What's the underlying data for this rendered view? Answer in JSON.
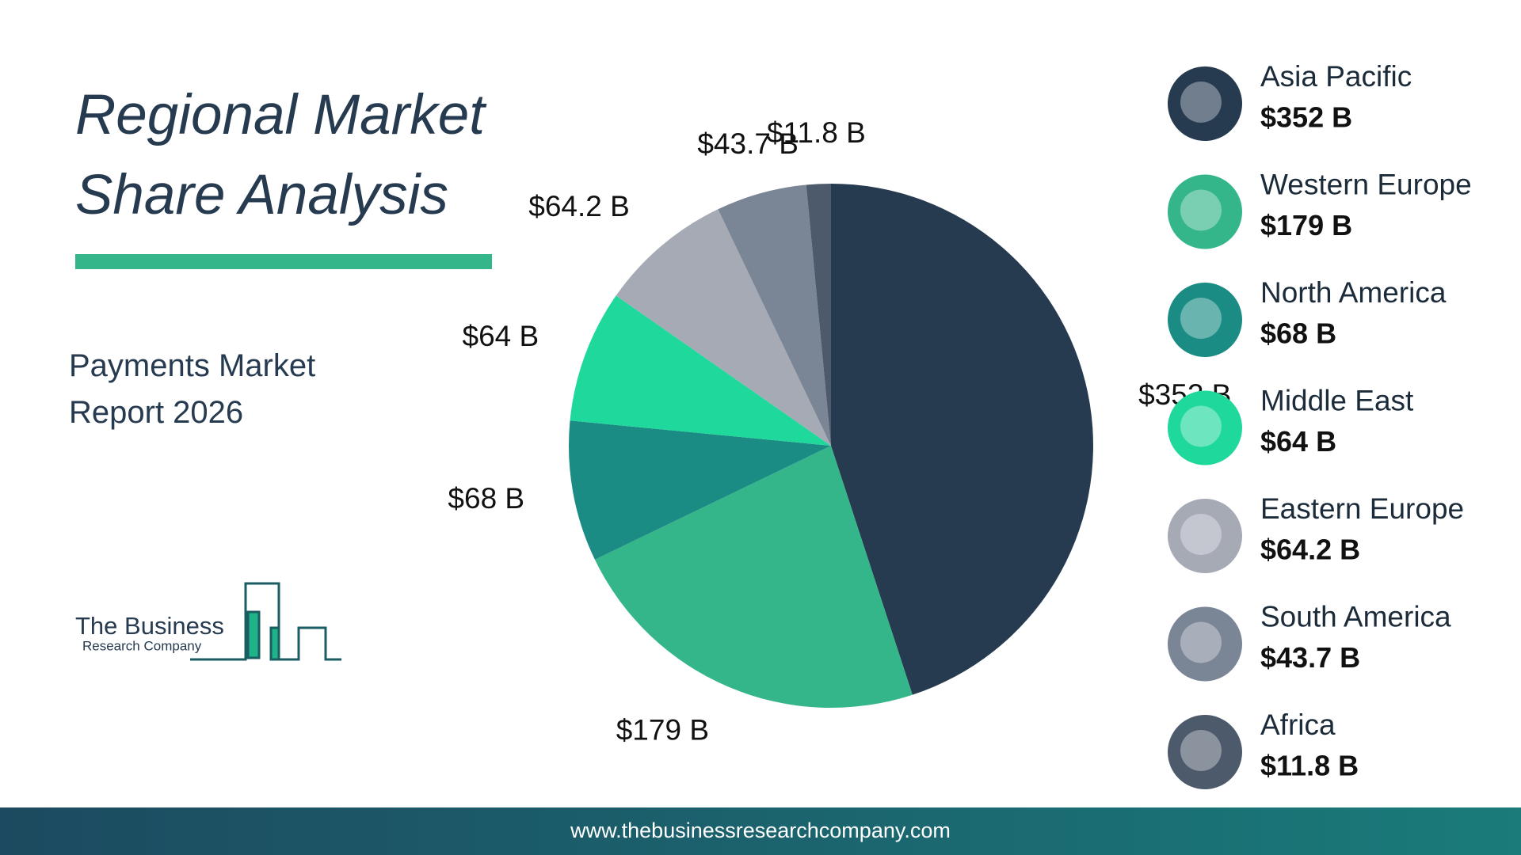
{
  "chart_data": {
    "type": "pie",
    "title": "Regional Market Share Analysis",
    "subtitle": "Payments Market Report 2026",
    "categories": [
      "Asia Pacific",
      "Western Europe",
      "North America",
      "Middle East",
      "Eastern Europe",
      "South America",
      "Africa"
    ],
    "values": [
      352,
      179,
      68,
      64,
      64.2,
      43.7,
      11.8
    ],
    "value_labels": [
      "$352 B",
      "$179 B",
      "$68 B",
      "$64 B",
      "$64.2 B",
      "$43.7 B",
      "$11.8 B"
    ],
    "colors": [
      "#263a50",
      "#34b68a",
      "#1a8c84",
      "#1fd89b",
      "#a5aab5",
      "#7a8595",
      "#4c5a6b"
    ]
  },
  "logo": {
    "line1": "The Business",
    "line2": "Research Company"
  },
  "footer": "www.thebusinessresearchcompany.com"
}
